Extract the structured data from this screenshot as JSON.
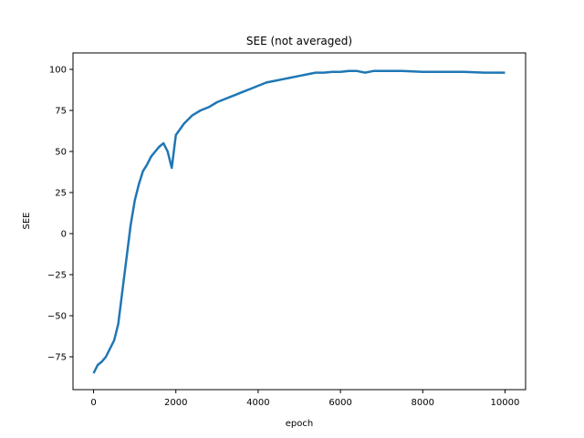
{
  "chart_data": {
    "type": "line",
    "title": "SEE (not averaged)",
    "xlabel": "epoch",
    "ylabel": "SEE",
    "xlim": [
      -500,
      10500
    ],
    "ylim": [
      -95,
      110
    ],
    "xticks": [
      0,
      2000,
      4000,
      6000,
      8000,
      10000
    ],
    "xtick_labels": [
      "0",
      "2000",
      "4000",
      "6000",
      "8000",
      "10000"
    ],
    "yticks": [
      -75,
      -50,
      -25,
      0,
      25,
      50,
      75,
      100
    ],
    "ytick_labels": [
      "−75",
      "−50",
      "−25",
      "0",
      "25",
      "50",
      "75",
      "100"
    ],
    "grid": false,
    "legend": "none",
    "series": [
      {
        "color": "#1f77b4",
        "x": [
          0,
          100,
          200,
          300,
          400,
          500,
          600,
          700,
          800,
          900,
          1000,
          1100,
          1200,
          1300,
          1400,
          1500,
          1600,
          1700,
          1800,
          1900,
          2000,
          2200,
          2400,
          2600,
          2800,
          3000,
          3200,
          3400,
          3600,
          3800,
          4000,
          4200,
          4400,
          4600,
          4800,
          5000,
          5200,
          5400,
          5600,
          5800,
          6000,
          6200,
          6400,
          6600,
          6800,
          7000,
          7500,
          8000,
          8500,
          9000,
          9500,
          10000
        ],
        "y": [
          -85,
          -80,
          -78,
          -75,
          -70,
          -65,
          -55,
          -35,
          -15,
          5,
          20,
          30,
          38,
          42,
          47,
          50,
          53,
          55,
          50,
          40,
          60,
          67,
          72,
          75,
          77,
          80,
          82,
          84,
          86,
          88,
          90,
          92,
          93,
          94,
          95,
          96,
          97,
          98,
          98,
          98.5,
          98.5,
          99,
          99,
          98,
          99,
          99,
          99,
          98.5,
          98.5,
          98.5,
          98,
          98
        ]
      }
    ]
  }
}
